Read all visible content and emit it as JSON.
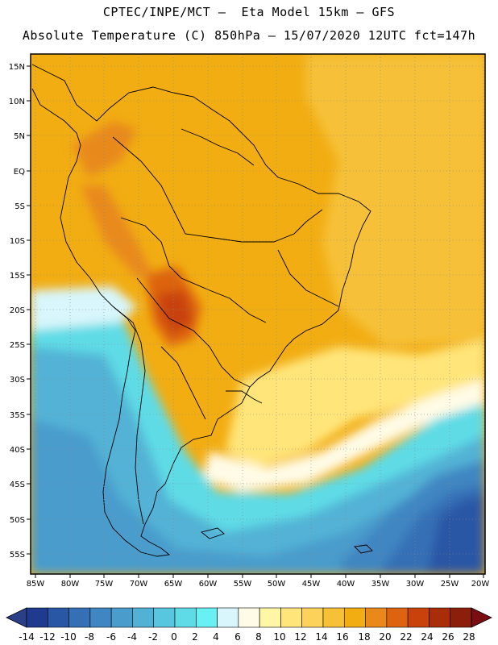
{
  "header": {
    "line1": "CPTEC/INPE/MCT –  Eta Model 15km – GFS",
    "line2": "Absolute Temperature (C) 850hPa – 15/07/2020 12UTC fct=147h"
  },
  "map": {
    "lat_labels": [
      "15N",
      "10N",
      "5N",
      "EQ",
      "5S",
      "10S",
      "15S",
      "20S",
      "25S",
      "30S",
      "35S",
      "40S",
      "45S",
      "50S",
      "55S"
    ],
    "lon_labels": [
      "85W",
      "80W",
      "75W",
      "70W",
      "65W",
      "60W",
      "55W",
      "50W",
      "45W",
      "40W",
      "35W",
      "30W",
      "25W",
      "20W"
    ]
  },
  "colorbar": {
    "labels": [
      "-14",
      "-12",
      "-10",
      "-8",
      "-6",
      "-4",
      "-2",
      "0",
      "2",
      "4",
      "6",
      "8",
      "10",
      "12",
      "14",
      "16",
      "18",
      "20",
      "22",
      "24",
      "26",
      "28"
    ],
    "colors": [
      "#1f3a8f",
      "#2a56a6",
      "#356fb6",
      "#3f86c2",
      "#4a9ccc",
      "#52b2d6",
      "#58c6de",
      "#5edbe6",
      "#68f0f2",
      "#d8f6fb",
      "#fffbe6",
      "#fff7a6",
      "#ffe57a",
      "#fcd25a",
      "#f6c137",
      "#f2ad13",
      "#e8891a",
      "#dd6310",
      "#c9420c",
      "#aa2d0a",
      "#8c1f0c"
    ],
    "under_color": "#2a3f86",
    "over_color": "#7a0d12"
  }
}
